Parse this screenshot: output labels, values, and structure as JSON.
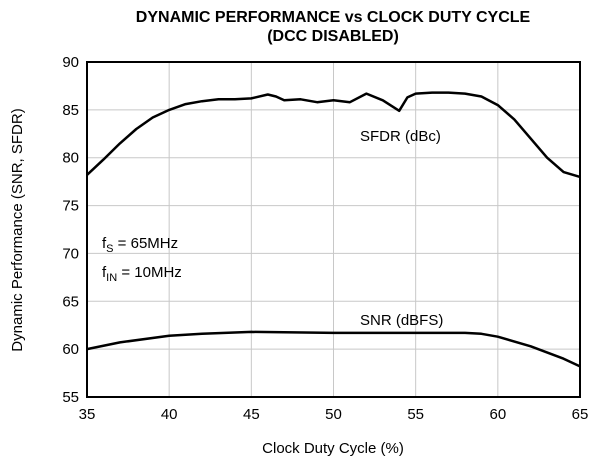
{
  "chart_data": {
    "type": "line",
    "title": [
      "DYNAMIC PERFORMANCE vs CLOCK DUTY CYCLE",
      "(DCC DISABLED)"
    ],
    "x_label": "Clock Duty Cycle (%)",
    "y_label": "Dynamic Performance (SNR, SFDR)",
    "xlim": [
      35,
      65
    ],
    "xticks": [
      35,
      40,
      45,
      50,
      55,
      60,
      65
    ],
    "ylim": [
      55,
      90
    ],
    "yticks": [
      55,
      60,
      65,
      70,
      75,
      80,
      85,
      90
    ],
    "grid": true,
    "series": [
      {
        "name": "SFDR (dBc)",
        "color": "#000000",
        "x": [
          35,
          36,
          37,
          38,
          39,
          40,
          41,
          42,
          43,
          44,
          45,
          46,
          46.5,
          47,
          48,
          49,
          50,
          51,
          52,
          53,
          54,
          54.5,
          55,
          56,
          57,
          58,
          59,
          60,
          61,
          62,
          63,
          64,
          65
        ],
        "values": [
          78.2,
          79.8,
          81.5,
          83,
          84.2,
          85,
          85.6,
          85.9,
          86.1,
          86.1,
          86.2,
          86.6,
          86.4,
          86.0,
          86.1,
          85.8,
          86.0,
          85.8,
          86.7,
          86.0,
          84.9,
          86.3,
          86.7,
          86.8,
          86.8,
          86.7,
          86.4,
          85.5,
          84,
          82,
          80,
          78.5,
          78.0
        ]
      },
      {
        "name": "SNR (dBFS)",
        "color": "#000000",
        "x": [
          35,
          37,
          40,
          42,
          45,
          50,
          55,
          58,
          59,
          60,
          62,
          64,
          65
        ],
        "values": [
          60.0,
          60.7,
          61.4,
          61.6,
          61.8,
          61.7,
          61.7,
          61.7,
          61.6,
          61.3,
          60.3,
          59.0,
          58.2
        ]
      }
    ],
    "annotations": [
      {
        "text": "f",
        "subscript": "S",
        "rest": " = 65MHz"
      },
      {
        "text": "f",
        "subscript": "IN",
        "rest": " = 10MHz"
      }
    ]
  }
}
